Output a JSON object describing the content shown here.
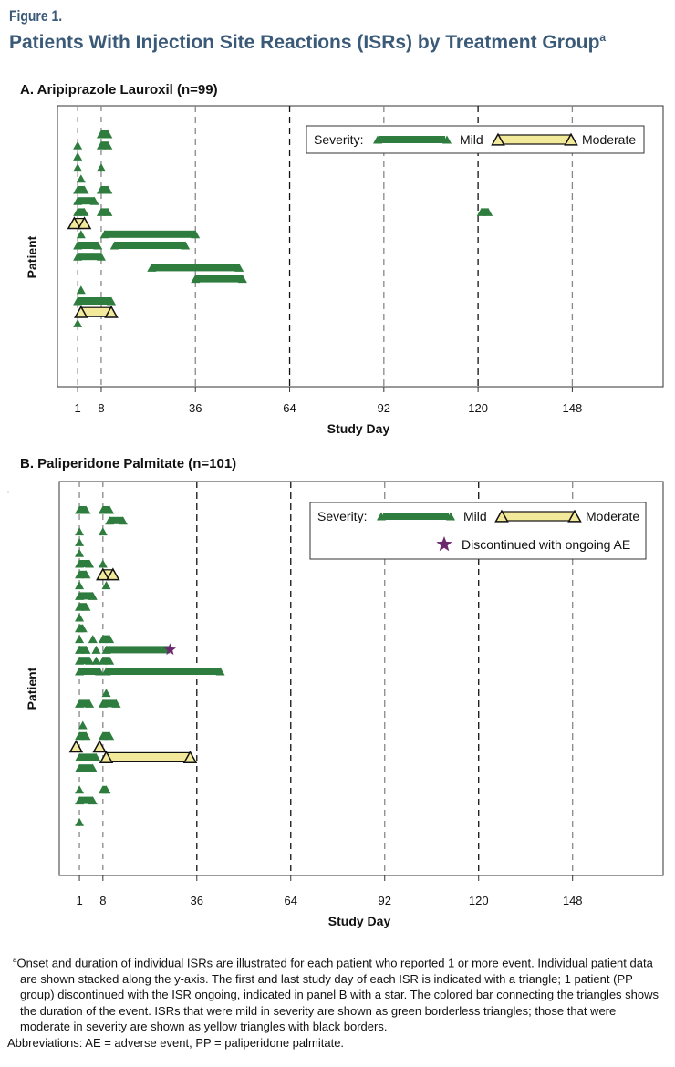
{
  "figure_label": "Figure 1.",
  "figure_title": "Patients With Injection Site Reactions (ISRs) by Treatment Group",
  "figure_title_sup": "a",
  "footnote_marker": "a",
  "footnote_text": "Onset and duration of individual ISRs are illustrated for each patient who reported 1 or more event. Individual patient data are shown stacked along the y-axis. The first and last study day of each ISR is indicated with a triangle; 1 patient (PP group) discontinued with the ISR ongoing, indicated in panel B with a star. The colored bar connecting the triangles shows the duration of the event. ISRs that were mild in severity are shown as green borderless triangles; those that were moderate in severity are shown as yellow triangles with black borders.",
  "abbreviations": "Abbreviations: AE = adverse event, PP = paliperidone palmitate.",
  "colors": {
    "mild": "#2e7d3e",
    "moderate": "#f3e99a",
    "star": "#6b2a6e",
    "title": "#3a5a78"
  },
  "chart_data": [
    {
      "type": "timeline",
      "panel_title": "A. Aripiprazole Lauroxil (n=99)",
      "xlabel": "Study Day",
      "ylabel": "Patient",
      "xticks": [
        1,
        8,
        36,
        64,
        92,
        120,
        148
      ],
      "xlim": [
        -5,
        175
      ],
      "ylim": [
        0,
        24
      ],
      "legend": {
        "title": "Severity:",
        "mild": "Mild",
        "moderate": "Moderate",
        "placement": "top-right"
      },
      "events": [
        {
          "row": 1,
          "start": 8,
          "end": 10,
          "severity": "mild"
        },
        {
          "row": 2,
          "start": 1,
          "end": 1,
          "severity": "mild"
        },
        {
          "row": 2,
          "start": 8,
          "end": 10,
          "severity": "mild"
        },
        {
          "row": 3,
          "start": 1,
          "end": 1,
          "severity": "mild"
        },
        {
          "row": 4,
          "start": 1,
          "end": 1,
          "severity": "mild"
        },
        {
          "row": 4,
          "start": 8,
          "end": 8,
          "severity": "mild"
        },
        {
          "row": 5,
          "start": 2,
          "end": 2,
          "severity": "mild"
        },
        {
          "row": 6,
          "start": 1,
          "end": 3,
          "severity": "mild"
        },
        {
          "row": 6,
          "start": 8,
          "end": 10,
          "severity": "mild"
        },
        {
          "row": 7,
          "start": 1,
          "end": 6,
          "severity": "mild"
        },
        {
          "row": 8,
          "start": 1,
          "end": 3,
          "severity": "mild"
        },
        {
          "row": 8,
          "start": 8,
          "end": 10,
          "severity": "mild"
        },
        {
          "row": 8,
          "start": 121,
          "end": 123,
          "severity": "mild"
        },
        {
          "row": 9,
          "start": 0,
          "end": 3,
          "severity": "moderate"
        },
        {
          "row": 10,
          "start": 2,
          "end": 2,
          "severity": "mild"
        },
        {
          "row": 10,
          "start": 9,
          "end": 36,
          "severity": "mild"
        },
        {
          "row": 11,
          "start": 1,
          "end": 7,
          "severity": "mild"
        },
        {
          "row": 11,
          "start": 12,
          "end": 33,
          "severity": "mild"
        },
        {
          "row": 12,
          "start": 1,
          "end": 8,
          "severity": "mild"
        },
        {
          "row": 13,
          "start": 23,
          "end": 49,
          "severity": "mild"
        },
        {
          "row": 14,
          "start": 36,
          "end": 50,
          "severity": "mild"
        },
        {
          "row": 15,
          "start": 2,
          "end": 2,
          "severity": "mild"
        },
        {
          "row": 16,
          "start": 1,
          "end": 11,
          "severity": "mild"
        },
        {
          "row": 17,
          "start": 2,
          "end": 11,
          "severity": "moderate"
        },
        {
          "row": 18,
          "start": 1,
          "end": 1,
          "severity": "mild"
        }
      ]
    },
    {
      "type": "timeline",
      "panel_title": "B. Paliperidone Palmitate (n=101)",
      "xlabel": "Study Day",
      "ylabel": "Patient",
      "xticks": [
        1,
        8,
        36,
        64,
        92,
        120,
        148
      ],
      "xlim": [
        -5,
        175
      ],
      "ylim": [
        0,
        33
      ],
      "legend": {
        "title": "Severity:",
        "mild": "Mild",
        "moderate": "Moderate",
        "star_label": "Discontinued with ongoing AE",
        "placement": "top-right"
      },
      "events": [
        {
          "row": 1,
          "start": 1,
          "end": 3,
          "severity": "mild"
        },
        {
          "row": 1,
          "start": 8,
          "end": 10,
          "severity": "mild"
        },
        {
          "row": 2,
          "start": 10,
          "end": 14,
          "severity": "mild"
        },
        {
          "row": 3,
          "start": 1,
          "end": 1,
          "severity": "mild"
        },
        {
          "row": 3,
          "start": 8,
          "end": 8,
          "severity": "mild"
        },
        {
          "row": 4,
          "start": 1,
          "end": 1,
          "severity": "mild"
        },
        {
          "row": 5,
          "start": 1,
          "end": 1,
          "severity": "mild"
        },
        {
          "row": 6,
          "start": 1,
          "end": 4,
          "severity": "mild"
        },
        {
          "row": 6,
          "start": 8,
          "end": 8,
          "severity": "mild"
        },
        {
          "row": 7,
          "start": 1,
          "end": 3,
          "severity": "mild"
        },
        {
          "row": 7,
          "start": 8,
          "end": 11,
          "severity": "moderate"
        },
        {
          "row": 8,
          "start": 1,
          "end": 1,
          "severity": "mild"
        },
        {
          "row": 8,
          "start": 9,
          "end": 9,
          "severity": "mild"
        },
        {
          "row": 9,
          "start": 1,
          "end": 5,
          "severity": "mild"
        },
        {
          "row": 10,
          "start": 1,
          "end": 3,
          "severity": "mild"
        },
        {
          "row": 11,
          "start": 1,
          "end": 1,
          "severity": "mild"
        },
        {
          "row": 12,
          "start": 1,
          "end": 2,
          "severity": "mild"
        },
        {
          "row": 13,
          "start": 1,
          "end": 1,
          "severity": "mild"
        },
        {
          "row": 13,
          "start": 5,
          "end": 5,
          "severity": "mild"
        },
        {
          "row": 13,
          "start": 8,
          "end": 10,
          "severity": "mild"
        },
        {
          "row": 14,
          "start": 1,
          "end": 3,
          "severity": "mild"
        },
        {
          "row": 14,
          "start": 6,
          "end": 6,
          "severity": "mild"
        },
        {
          "row": 14,
          "start": 9,
          "end": 28,
          "severity": "mild",
          "ongoing": true
        },
        {
          "row": 15,
          "start": 1,
          "end": 4,
          "severity": "mild"
        },
        {
          "row": 15,
          "start": 6,
          "end": 6,
          "severity": "mild"
        },
        {
          "row": 15,
          "start": 8,
          "end": 10,
          "severity": "mild"
        },
        {
          "row": 16,
          "start": 1,
          "end": 7,
          "severity": "mild"
        },
        {
          "row": 16,
          "start": 9,
          "end": 43,
          "severity": "mild"
        },
        {
          "row": 18,
          "start": 9,
          "end": 9,
          "severity": "mild"
        },
        {
          "row": 19,
          "start": 1,
          "end": 4,
          "severity": "mild"
        },
        {
          "row": 19,
          "start": 8,
          "end": 12,
          "severity": "mild"
        },
        {
          "row": 21,
          "start": 2,
          "end": 2,
          "severity": "mild"
        },
        {
          "row": 22,
          "start": 1,
          "end": 3,
          "severity": "mild"
        },
        {
          "row": 22,
          "start": 8,
          "end": 10,
          "severity": "mild"
        },
        {
          "row": 23,
          "start": 0,
          "end": 0,
          "severity": "moderate"
        },
        {
          "row": 23,
          "start": 7,
          "end": 7,
          "severity": "moderate"
        },
        {
          "row": 24,
          "start": 1,
          "end": 6,
          "severity": "mild"
        },
        {
          "row": 24,
          "start": 9,
          "end": 34,
          "severity": "moderate"
        },
        {
          "row": 25,
          "start": 1,
          "end": 5,
          "severity": "mild"
        },
        {
          "row": 27,
          "start": 1,
          "end": 1,
          "severity": "mild"
        },
        {
          "row": 27,
          "start": 8,
          "end": 9,
          "severity": "mild"
        },
        {
          "row": 28,
          "start": 1,
          "end": 5,
          "severity": "mild"
        },
        {
          "row": 30,
          "start": 1,
          "end": 1,
          "severity": "mild"
        }
      ]
    }
  ]
}
